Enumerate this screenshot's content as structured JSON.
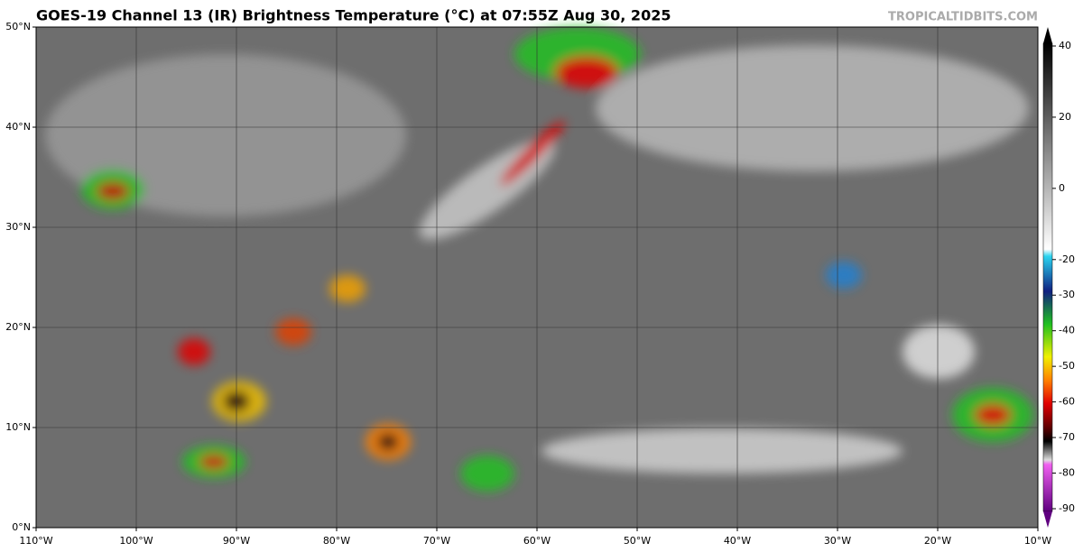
{
  "title": "GOES-19 Channel 13 (IR) Brightness Temperature (°C) at 07:55Z Aug 30, 2025",
  "watermark": "TROPICALTIDBITS.COM",
  "map": {
    "xlim": [
      -110,
      -10
    ],
    "ylim": [
      0,
      50
    ],
    "xticks": [
      {
        "value": -110,
        "label": "110°W"
      },
      {
        "value": -100,
        "label": "100°W"
      },
      {
        "value": -90,
        "label": "90°W"
      },
      {
        "value": -80,
        "label": "80°W"
      },
      {
        "value": -70,
        "label": "70°W"
      },
      {
        "value": -60,
        "label": "60°W"
      },
      {
        "value": -50,
        "label": "50°W"
      },
      {
        "value": -40,
        "label": "40°W"
      },
      {
        "value": -30,
        "label": "30°W"
      },
      {
        "value": -20,
        "label": "20°W"
      },
      {
        "value": -10,
        "label": "10°W"
      }
    ],
    "yticks": [
      {
        "value": 0,
        "label": "0°N"
      },
      {
        "value": 10,
        "label": "10°N"
      },
      {
        "value": 20,
        "label": "20°N"
      },
      {
        "value": 30,
        "label": "30°N"
      },
      {
        "value": 40,
        "label": "40°N"
      },
      {
        "value": 50,
        "label": "50°N"
      }
    ],
    "grid": true
  },
  "colorbar": {
    "lim": [
      -90,
      40
    ],
    "ticks": [
      40,
      20,
      0,
      -20,
      -30,
      -40,
      -50,
      -60,
      -70,
      -80,
      -90
    ]
  }
}
